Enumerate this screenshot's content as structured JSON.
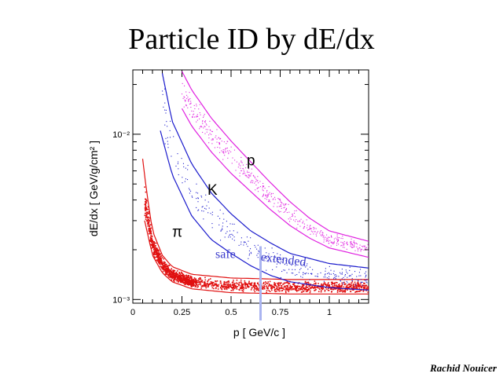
{
  "title": "Particle ID by dE/dx",
  "credit": "Rachid Nouicer",
  "colors": {
    "pion": "#e01010",
    "kaon": "#1a1acc",
    "proton": "#e020e0",
    "separator": "#aab4f0",
    "region_text": "#3a3acc"
  },
  "chart_data": {
    "type": "scatter",
    "xlabel": "p [ GeV/c ]",
    "ylabel": "dE/dx  [ GeV/g/cm² ]",
    "xlim": [
      0,
      1.2
    ],
    "ylim": [
      0.00095,
      0.0245
    ],
    "y_scale": "log",
    "x_ticks": [
      {
        "value": 0,
        "label": "0"
      },
      {
        "value": 0.25,
        "label": "0.25"
      },
      {
        "value": 0.5,
        "label": "0.5"
      },
      {
        "value": 0.75,
        "label": "0.75"
      },
      {
        "value": 1,
        "label": "1"
      }
    ],
    "y_ticks": [
      {
        "value": 0.001,
        "label": "10⁻³"
      },
      {
        "value": 0.01,
        "label": "10⁻²"
      }
    ],
    "series": [
      {
        "name": "π",
        "particle": "pion",
        "band_lower": [
          [
            0.06,
            0.003
          ],
          [
            0.1,
            0.00185
          ],
          [
            0.15,
            0.00145
          ],
          [
            0.2,
            0.00128
          ],
          [
            0.3,
            0.00116
          ],
          [
            0.5,
            0.0011
          ],
          [
            0.8,
            0.00108
          ],
          [
            1.2,
            0.00108
          ]
        ],
        "band_upper": [
          [
            0.05,
            0.0071
          ],
          [
            0.07,
            0.0045
          ],
          [
            0.1,
            0.0026
          ],
          [
            0.15,
            0.00185
          ],
          [
            0.2,
            0.00158
          ],
          [
            0.3,
            0.00142
          ],
          [
            0.5,
            0.00135
          ],
          [
            0.8,
            0.00132
          ],
          [
            1.2,
            0.00132
          ]
        ]
      },
      {
        "name": "K",
        "particle": "kaon",
        "band_lower": [
          [
            0.14,
            0.0105
          ],
          [
            0.2,
            0.0057
          ],
          [
            0.3,
            0.0032
          ],
          [
            0.4,
            0.0023
          ],
          [
            0.5,
            0.0019
          ],
          [
            0.6,
            0.0016
          ],
          [
            0.7,
            0.0014
          ],
          [
            0.8,
            0.00128
          ],
          [
            1.0,
            0.00118
          ],
          [
            1.2,
            0.00114
          ]
        ],
        "band_upper": [
          [
            0.15,
            0.0234
          ],
          [
            0.2,
            0.012
          ],
          [
            0.3,
            0.0066
          ],
          [
            0.4,
            0.0044
          ],
          [
            0.5,
            0.0033
          ],
          [
            0.6,
            0.0026
          ],
          [
            0.7,
            0.0022
          ],
          [
            0.8,
            0.0019
          ],
          [
            1.0,
            0.00165
          ],
          [
            1.2,
            0.00155
          ]
        ]
      },
      {
        "name": "p",
        "particle": "proton",
        "band_lower": [
          [
            0.25,
            0.0143
          ],
          [
            0.3,
            0.0112
          ],
          [
            0.4,
            0.0078
          ],
          [
            0.5,
            0.0058
          ],
          [
            0.6,
            0.0045
          ],
          [
            0.7,
            0.0035
          ],
          [
            0.8,
            0.0028
          ],
          [
            0.9,
            0.00235
          ],
          [
            1.0,
            0.00205
          ],
          [
            1.2,
            0.0018
          ]
        ],
        "band_upper": [
          [
            0.25,
            0.024
          ],
          [
            0.3,
            0.0185
          ],
          [
            0.4,
            0.0125
          ],
          [
            0.5,
            0.0091
          ],
          [
            0.6,
            0.0068
          ],
          [
            0.7,
            0.0051
          ],
          [
            0.8,
            0.0039
          ],
          [
            0.9,
            0.0031
          ],
          [
            1.0,
            0.0026
          ],
          [
            1.2,
            0.00225
          ]
        ]
      }
    ],
    "annotations": [
      {
        "text": "p",
        "x": 0.58,
        "y": 0.0065,
        "kind": "particle"
      },
      {
        "text": "K",
        "x": 0.38,
        "y": 0.0043,
        "kind": "particle"
      },
      {
        "text": "π",
        "x": 0.2,
        "y": 0.0024,
        "kind": "particle"
      },
      {
        "text": "safe",
        "x": 0.42,
        "y": 0.00178,
        "kind": "region"
      },
      {
        "text": "extended",
        "x": 0.65,
        "y": 0.00172,
        "kind": "region",
        "rotate": 7
      }
    ],
    "separator_x": 0.65
  }
}
